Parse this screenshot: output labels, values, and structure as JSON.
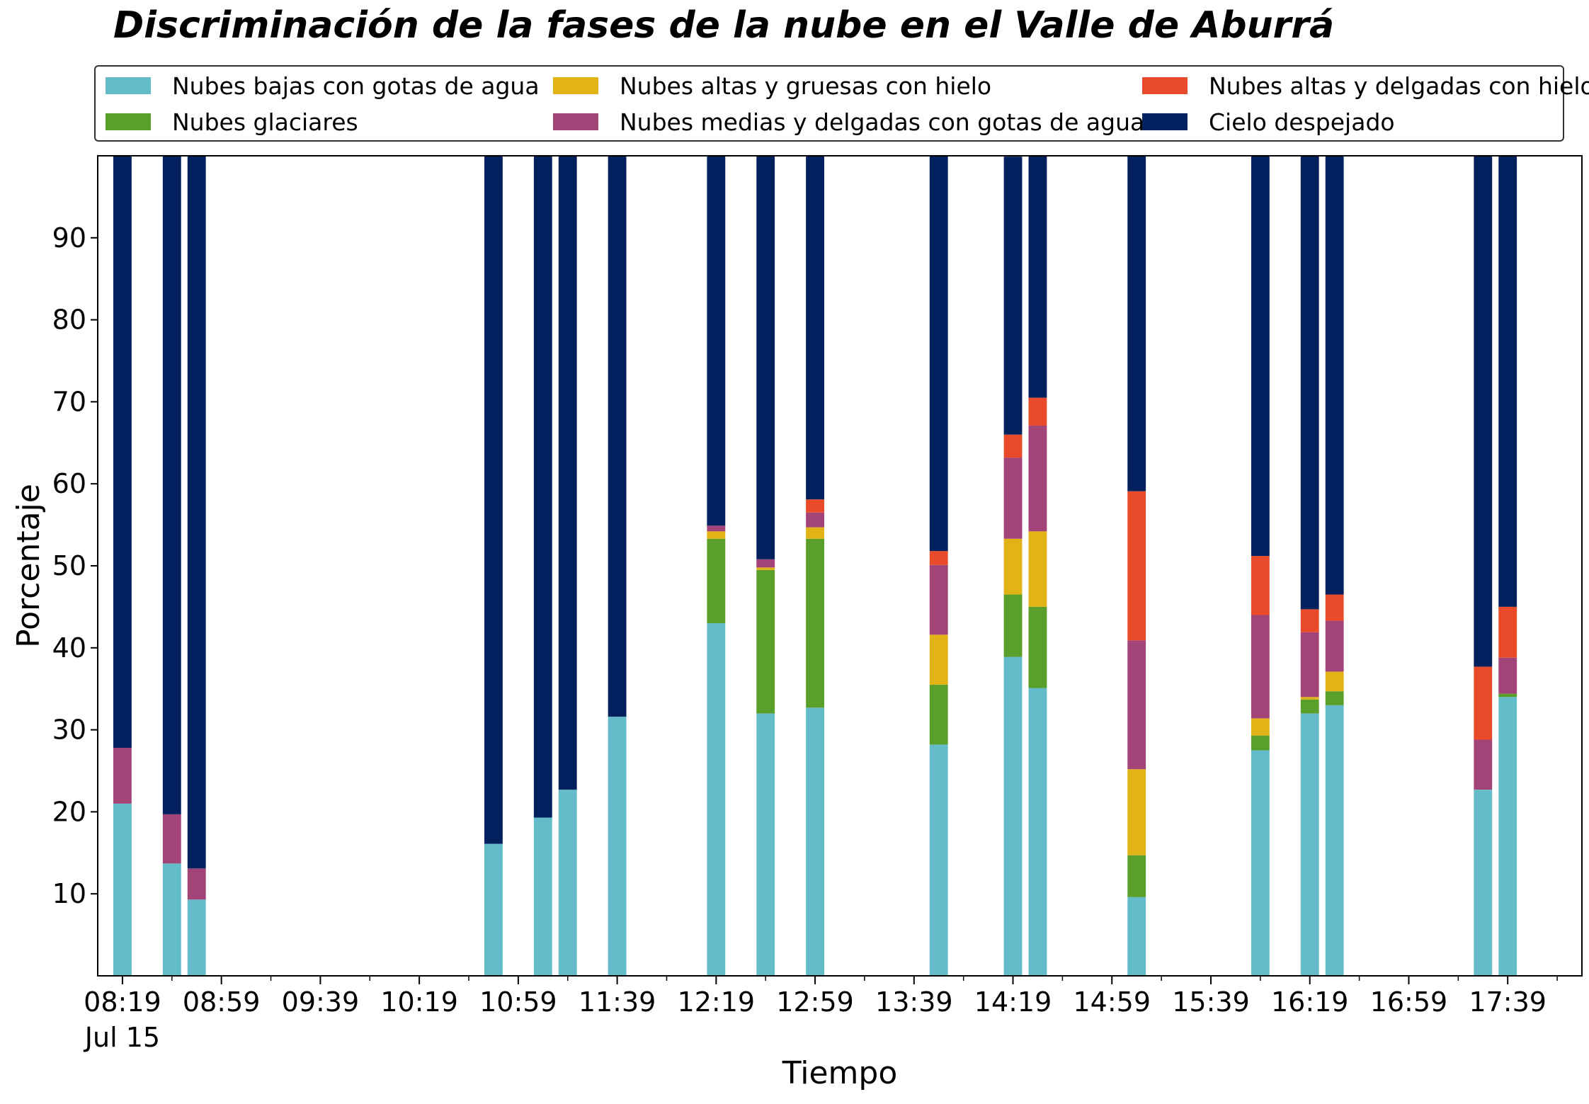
{
  "chart_data": {
    "type": "bar",
    "stacked": true,
    "title": "Discriminación de la fases de la nube en el Valle de Aburrá",
    "xlabel": "Tiempo",
    "ylabel": "Porcentaje",
    "ylim": [
      0,
      100
    ],
    "yticks": [
      10,
      20,
      30,
      40,
      50,
      60,
      70,
      80,
      90
    ],
    "xrange": [
      "08:09",
      "18:09"
    ],
    "xticks_major": [
      "08:19",
      "08:59",
      "09:39",
      "10:19",
      "10:59",
      "11:39",
      "12:19",
      "12:59",
      "13:39",
      "14:19",
      "14:59",
      "15:39",
      "16:19",
      "16:59",
      "17:39"
    ],
    "xtick_date": "Jul 15",
    "legend_position": "top",
    "grid": false,
    "times": [
      "08:19",
      "08:39",
      "08:49",
      "10:49",
      "11:09",
      "11:19",
      "11:39",
      "12:19",
      "12:39",
      "12:59",
      "13:49",
      "14:19",
      "14:29",
      "15:09",
      "15:59",
      "16:19",
      "16:29",
      "17:29",
      "17:39"
    ],
    "series": [
      {
        "name": "Nubes bajas con gotas de agua",
        "color": "#64BCCA",
        "values": [
          21,
          13.7,
          9.3,
          16.1,
          19.3,
          22.7,
          31.6,
          43,
          32,
          32.7,
          28.2,
          38.9,
          35.1,
          9.6,
          27.5,
          32,
          33,
          22.7,
          34
        ]
      },
      {
        "name": "Nubes glaciares",
        "color": "#5B9F2B",
        "values": [
          0,
          0,
          0,
          0,
          0,
          0,
          0,
          10.3,
          17.5,
          20.6,
          7.3,
          7.6,
          9.9,
          5.1,
          1.8,
          1.7,
          1.7,
          0,
          0.4
        ]
      },
      {
        "name": "Nubes altas y gruesas con hielo",
        "color": "#E2B317",
        "values": [
          0,
          0,
          0,
          0,
          0,
          0,
          0,
          0.9,
          0.3,
          1.4,
          6.1,
          6.8,
          9.2,
          10.5,
          2.1,
          0.3,
          2.4,
          0,
          0
        ]
      },
      {
        "name": "Nubes medias y delgadas con gotas de agua",
        "color": "#A34478",
        "values": [
          6.8,
          6,
          3.8,
          0,
          0,
          0,
          0,
          0.7,
          1,
          1.8,
          8.5,
          9.9,
          12.9,
          15.7,
          12.6,
          7.9,
          6.2,
          6.1,
          4.4
        ]
      },
      {
        "name": "Nubes altas y delgadas con hielo",
        "color": "#E94B2A",
        "values": [
          0,
          0,
          0,
          0,
          0,
          0,
          0,
          0,
          0,
          1.6,
          1.7,
          2.8,
          3.4,
          18.2,
          7.2,
          2.8,
          3.2,
          8.9,
          6.2
        ]
      },
      {
        "name": "Cielo despejado",
        "color": "#03215E",
        "values": [
          72.2,
          80.3,
          86.9,
          83.9,
          80.7,
          77.3,
          68.4,
          45.1,
          49.2,
          41.9,
          48.2,
          33.9,
          29.5,
          40.9,
          48.8,
          55.3,
          53.5,
          62.3,
          55
        ]
      }
    ]
  }
}
